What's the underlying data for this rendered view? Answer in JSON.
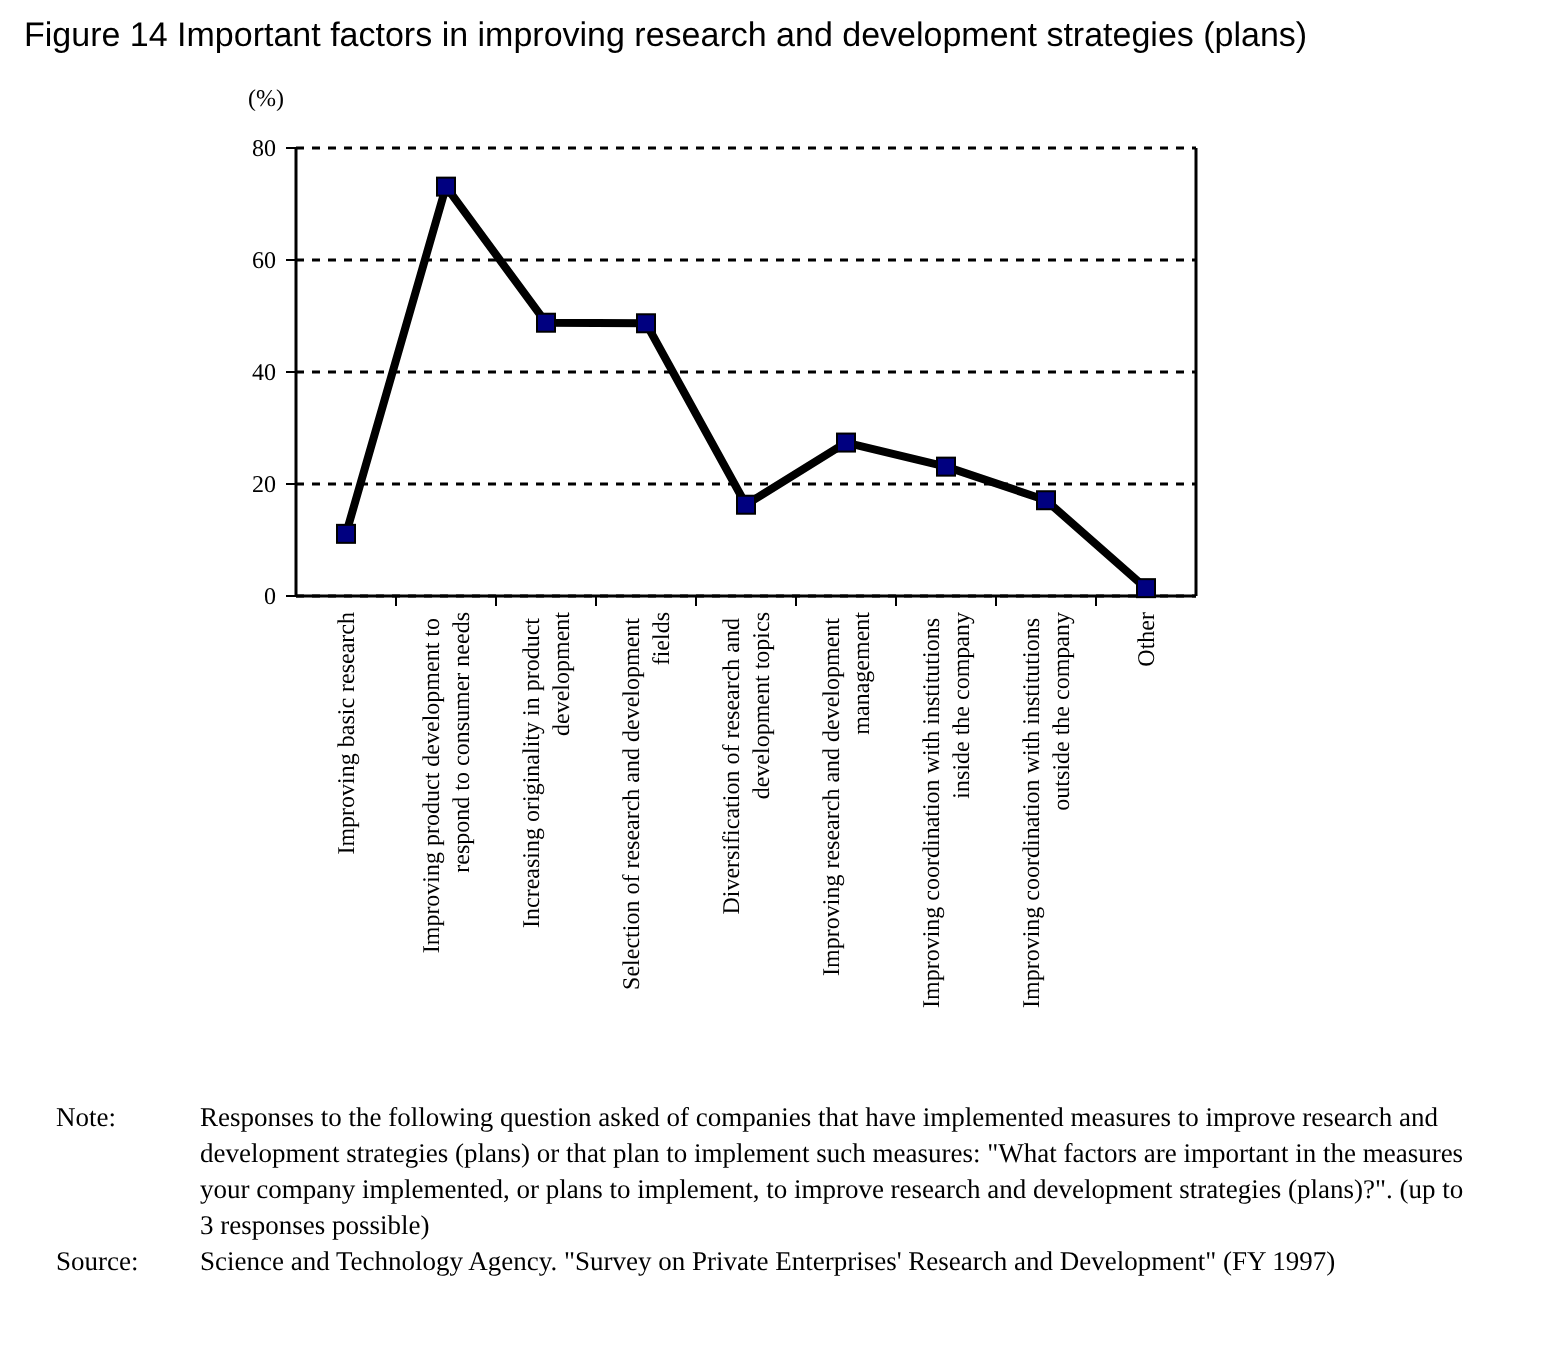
{
  "chart_data": {
    "type": "line",
    "title": "Figure 14 Important factors in improving research and development strategies (plans)",
    "ylabel": "(%)",
    "categories": [
      "Improving basic research",
      "Improving product development to respond to consumer needs",
      "Increasing originality in product development",
      "Selection of research and development fields",
      "Diversification of research and development topics",
      "Improving research and development management",
      "Improving coordination with institutions inside the company",
      "Improving coordination with institutions outside the company",
      "Other"
    ],
    "series": [
      {
        "color": "#000000",
        "values": [
          11.1,
          73.1,
          48.8,
          48.7,
          16.3,
          27.4,
          23.1,
          17.1,
          1.4
        ]
      }
    ],
    "marker": "square",
    "line_style": "solid",
    "grid": "y",
    "ylim": [
      0,
      80
    ],
    "yticks": [
      0,
      20,
      40,
      60,
      80
    ],
    "annotations": [
      "Note: Responses to the following question asked of companies that have implemented measures to improve research and development strategies (plans) or that plan to implement such measures: \"What factors are important in the measures your company implemented, or plans to implement, to improve research and development strategies (plans)?\". (up to 3 responses possible)",
      "Source: Science and Technology Agency. \"Survey on Private Enterprises' Research and Development\" (FY 1997)"
    ]
  }
}
